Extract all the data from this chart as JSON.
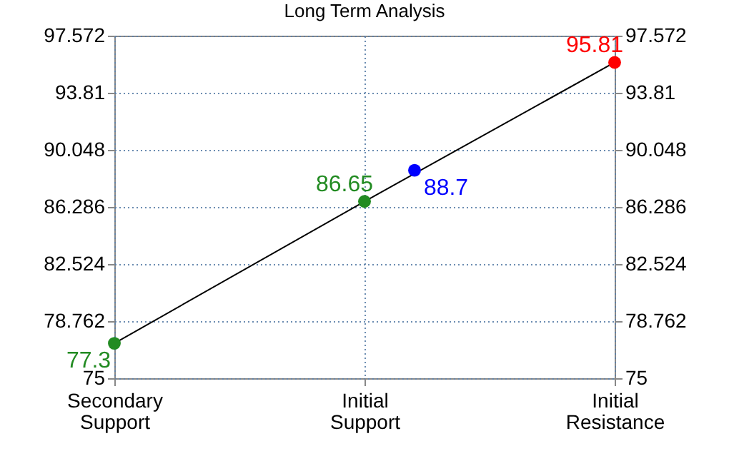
{
  "chart_data": {
    "type": "line",
    "title": "Long Term Analysis",
    "categories": [
      "Secondary Support",
      null,
      null,
      null,
      null,
      "Initial Support",
      null,
      null,
      null,
      null,
      "Initial Resistance"
    ],
    "ylim": [
      75,
      97.572
    ],
    "yticks": [
      75,
      78.762,
      82.524,
      86.286,
      90.048,
      93.81,
      97.572
    ],
    "y2lim": [
      75,
      97.572
    ],
    "y2ticks": [
      75,
      78.762,
      82.524,
      86.286,
      90.048,
      93.81,
      97.572
    ],
    "grid": true,
    "line_style": "solid",
    "series": [
      {
        "color": "#000000",
        "x": [
          "Secondary Support",
          "Initial Support",
          "Initial Resistance"
        ],
        "values": [
          77.3,
          86.65,
          95.81
        ],
        "marker": "none"
      },
      {
        "type": "scatter",
        "color": "#228b22",
        "values": [
          77.3,
          null,
          null,
          null,
          null,
          null,
          null,
          null,
          null,
          null,
          null
        ],
        "value_labels": [
          "77.3",
          null,
          null,
          null,
          null,
          null,
          null,
          null,
          null,
          null,
          null
        ],
        "marker": "circle"
      },
      {
        "type": "scatter",
        "color": "#228b22",
        "values": [
          null,
          null,
          null,
          null,
          null,
          86.65,
          null,
          null,
          null,
          null,
          null
        ],
        "value_labels": [
          null,
          null,
          null,
          null,
          null,
          "86.65",
          null,
          null,
          null,
          null,
          null
        ],
        "marker": "circle"
      },
      {
        "type": "scatter",
        "color": "#0000ff",
        "values": [
          null,
          null,
          null,
          null,
          null,
          null,
          88.7,
          null,
          null,
          null,
          null
        ],
        "value_labels": [
          null,
          null,
          null,
          null,
          null,
          null,
          "88.7",
          null,
          null,
          null,
          null
        ],
        "marker": "circle"
      },
      {
        "type": "scatter",
        "color": "#ff0000",
        "values": [
          null,
          null,
          null,
          null,
          null,
          null,
          null,
          null,
          null,
          null,
          95.81
        ],
        "value_labels": [
          null,
          null,
          null,
          null,
          null,
          null,
          null,
          null,
          null,
          null,
          "95.81"
        ],
        "marker": "circle"
      }
    ]
  }
}
